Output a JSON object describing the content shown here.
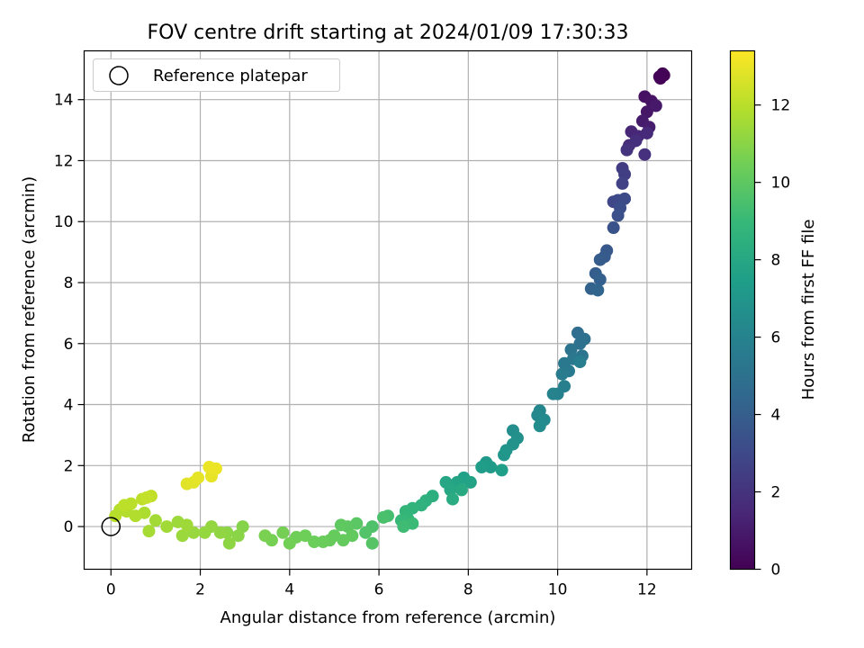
{
  "chart_data": {
    "type": "scatter",
    "title": "FOV centre drift starting at 2024/01/09 17:30:33",
    "xlabel": "Angular distance from reference (arcmin)",
    "ylabel": "Rotation from reference (arcmin)",
    "xlim": [
      -0.6,
      13.0
    ],
    "ylim": [
      -1.4,
      15.6
    ],
    "x_ticks": [
      0,
      2,
      4,
      6,
      8,
      10,
      12
    ],
    "y_ticks": [
      0,
      2,
      4,
      6,
      8,
      10,
      12,
      14
    ],
    "grid": true,
    "legend": {
      "position": "top-left",
      "entries": [
        "Reference platepar"
      ]
    },
    "reference_point": {
      "x": 0,
      "y": 0
    },
    "colorbar": {
      "label": "Hours from first FF file",
      "range": [
        0,
        13.4
      ],
      "ticks": [
        0,
        2,
        4,
        6,
        8,
        10,
        12
      ],
      "colormap": [
        "#440154",
        "#482878",
        "#3e4989",
        "#31688e",
        "#26828e",
        "#1f9e89",
        "#35b779",
        "#6ece58",
        "#b5de2b",
        "#fde725"
      ]
    },
    "series": [
      {
        "name": "FOV centre drift",
        "points": [
          [
            12.35,
            14.85,
            0.0
          ],
          [
            12.3,
            14.7,
            0.05
          ],
          [
            12.38,
            14.8,
            0.1
          ],
          [
            12.28,
            14.75,
            0.15
          ],
          [
            11.95,
            14.1,
            0.6
          ],
          [
            12.1,
            13.95,
            0.7
          ],
          [
            12.0,
            13.6,
            0.8
          ],
          [
            12.2,
            13.8,
            0.9
          ],
          [
            11.9,
            13.3,
            1.0
          ],
          [
            12.05,
            13.1,
            1.1
          ],
          [
            11.65,
            12.95,
            1.4
          ],
          [
            11.8,
            12.8,
            1.5
          ],
          [
            12.0,
            12.9,
            1.6
          ],
          [
            11.6,
            12.5,
            1.7
          ],
          [
            11.75,
            12.65,
            1.8
          ],
          [
            11.95,
            12.2,
            1.9
          ],
          [
            11.55,
            12.35,
            2.0
          ],
          [
            11.45,
            11.75,
            2.4
          ],
          [
            11.5,
            11.55,
            2.5
          ],
          [
            11.45,
            11.25,
            2.6
          ],
          [
            11.25,
            10.65,
            2.9
          ],
          [
            11.35,
            10.7,
            3.0
          ],
          [
            11.5,
            10.75,
            3.1
          ],
          [
            11.4,
            10.45,
            3.2
          ],
          [
            11.35,
            10.2,
            3.3
          ],
          [
            11.25,
            9.8,
            3.4
          ],
          [
            11.1,
            9.05,
            3.7
          ],
          [
            11.05,
            8.85,
            3.8
          ],
          [
            10.95,
            8.75,
            3.9
          ],
          [
            10.85,
            8.3,
            4.0
          ],
          [
            10.95,
            8.1,
            4.1
          ],
          [
            10.75,
            7.8,
            4.2
          ],
          [
            10.9,
            7.75,
            4.3
          ],
          [
            10.45,
            6.35,
            4.8
          ],
          [
            10.6,
            6.15,
            4.9
          ],
          [
            10.5,
            6.0,
            5.0
          ],
          [
            10.3,
            5.8,
            5.1
          ],
          [
            10.55,
            5.6,
            5.2
          ],
          [
            10.35,
            5.5,
            5.3
          ],
          [
            10.15,
            5.35,
            5.4
          ],
          [
            10.25,
            5.1,
            5.5
          ],
          [
            10.1,
            5.0,
            5.6
          ],
          [
            10.5,
            5.4,
            5.7
          ],
          [
            10.15,
            4.6,
            5.8
          ],
          [
            10.0,
            4.35,
            5.9
          ],
          [
            9.9,
            4.35,
            6.0
          ],
          [
            9.6,
            3.8,
            6.2
          ],
          [
            9.55,
            3.65,
            6.3
          ],
          [
            9.7,
            3.5,
            6.4
          ],
          [
            9.6,
            3.3,
            6.5
          ],
          [
            9.0,
            3.15,
            6.6
          ],
          [
            9.1,
            2.9,
            6.7
          ],
          [
            9.0,
            2.7,
            6.8
          ],
          [
            8.85,
            2.5,
            6.9
          ],
          [
            8.8,
            2.35,
            7.0
          ],
          [
            8.4,
            2.1,
            7.2
          ],
          [
            8.5,
            1.95,
            7.3
          ],
          [
            8.3,
            1.95,
            7.4
          ],
          [
            8.75,
            1.85,
            7.5
          ],
          [
            7.9,
            1.6,
            7.6
          ],
          [
            8.05,
            1.45,
            7.7
          ],
          [
            7.75,
            1.45,
            7.8
          ],
          [
            7.5,
            1.45,
            7.9
          ],
          [
            7.6,
            1.2,
            8.0
          ],
          [
            7.85,
            1.2,
            8.1
          ],
          [
            7.65,
            0.9,
            8.2
          ],
          [
            7.2,
            1.0,
            8.4
          ],
          [
            7.05,
            0.85,
            8.5
          ],
          [
            6.95,
            0.7,
            8.6
          ],
          [
            6.75,
            0.6,
            8.7
          ],
          [
            6.6,
            0.5,
            8.8
          ],
          [
            6.65,
            0.25,
            8.9
          ],
          [
            6.5,
            0.2,
            9.0
          ],
          [
            6.75,
            0.1,
            9.1
          ],
          [
            6.55,
            0.0,
            9.2
          ],
          [
            6.2,
            0.35,
            9.4
          ],
          [
            6.1,
            0.3,
            9.5
          ],
          [
            5.85,
            0.0,
            9.6
          ],
          [
            5.7,
            -0.2,
            9.7
          ],
          [
            5.85,
            -0.55,
            9.8
          ],
          [
            5.5,
            0.1,
            9.9
          ],
          [
            5.3,
            0.0,
            10.0
          ],
          [
            5.15,
            0.05,
            10.05
          ],
          [
            5.4,
            -0.3,
            10.1
          ],
          [
            5.2,
            -0.45,
            10.15
          ],
          [
            5.0,
            -0.3,
            10.2
          ],
          [
            4.9,
            -0.45,
            10.25
          ],
          [
            4.75,
            -0.5,
            10.3
          ],
          [
            4.55,
            -0.5,
            10.35
          ],
          [
            4.35,
            -0.3,
            10.4
          ],
          [
            4.15,
            -0.35,
            10.45
          ],
          [
            4.0,
            -0.55,
            10.5
          ],
          [
            3.85,
            -0.2,
            10.55
          ],
          [
            3.6,
            -0.45,
            10.6
          ],
          [
            3.45,
            -0.3,
            10.65
          ],
          [
            2.95,
            0.0,
            10.9
          ],
          [
            2.85,
            -0.3,
            11.0
          ],
          [
            2.6,
            -0.2,
            11.05
          ],
          [
            2.65,
            -0.55,
            11.1
          ],
          [
            2.45,
            -0.2,
            11.15
          ],
          [
            2.25,
            0.0,
            11.2
          ],
          [
            2.1,
            -0.2,
            11.25
          ],
          [
            1.85,
            -0.2,
            11.3
          ],
          [
            1.6,
            -0.3,
            11.35
          ],
          [
            1.5,
            0.15,
            11.4
          ],
          [
            1.7,
            0.05,
            11.45
          ],
          [
            1.25,
            0.0,
            11.5
          ],
          [
            1.0,
            0.2,
            11.55
          ],
          [
            0.85,
            -0.15,
            11.6
          ],
          [
            0.75,
            0.45,
            11.75
          ],
          [
            0.55,
            0.35,
            11.8
          ],
          [
            0.35,
            0.5,
            11.85
          ],
          [
            0.2,
            0.55,
            11.9
          ],
          [
            0.1,
            0.35,
            11.95
          ],
          [
            0.45,
            0.75,
            12.0
          ],
          [
            0.3,
            0.7,
            12.05
          ],
          [
            0.7,
            0.9,
            12.1
          ],
          [
            0.9,
            1.0,
            12.15
          ],
          [
            0.8,
            0.95,
            12.2
          ],
          [
            1.7,
            1.4,
            12.8
          ],
          [
            1.85,
            1.45,
            12.85
          ],
          [
            1.95,
            1.6,
            12.9
          ],
          [
            2.25,
            1.65,
            12.95
          ],
          [
            2.2,
            1.95,
            13.0
          ],
          [
            2.35,
            1.9,
            13.05
          ]
        ]
      }
    ]
  }
}
